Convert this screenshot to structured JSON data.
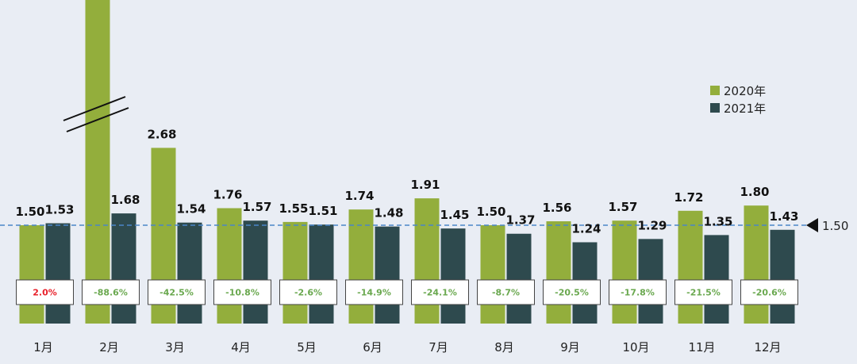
{
  "chart_data": {
    "type": "bar",
    "categories": [
      "1月",
      "2月",
      "3月",
      "4月",
      "5月",
      "6月",
      "7月",
      "8月",
      "9月",
      "10月",
      "11月",
      "12月"
    ],
    "series": [
      {
        "name": "2020年",
        "color": "#93ae3c",
        "values": [
          1.5,
          null,
          2.68,
          1.76,
          1.55,
          1.74,
          1.91,
          1.5,
          1.56,
          1.57,
          1.72,
          1.8
        ],
        "labels": [
          "1.50",
          "",
          "2.68",
          "1.76",
          "1.55",
          "1.74",
          "1.91",
          "1.50",
          "1.56",
          "1.57",
          "1.72",
          "1.80"
        ]
      },
      {
        "name": "2021年",
        "color": "#2e4a4e",
        "values": [
          1.53,
          1.68,
          1.54,
          1.57,
          1.51,
          1.48,
          1.45,
          1.37,
          1.24,
          1.29,
          1.35,
          1.43
        ],
        "labels": [
          "1.53",
          "1.68",
          "1.54",
          "1.57",
          "1.51",
          "1.48",
          "1.45",
          "1.37",
          "1.24",
          "1.29",
          "1.35",
          "1.43"
        ]
      }
    ],
    "change_labels": [
      "2.0%",
      "-88.6%",
      "-42.5%",
      "-10.8%",
      "-2.6%",
      "-14.9%",
      "-24.1%",
      "-8.7%",
      "-20.5%",
      "-17.8%",
      "-21.5%",
      "-20.6%"
    ],
    "change_colors": {
      "positive": "#e8202a",
      "negative": "#6aa84f"
    },
    "reference_line": {
      "value": 1.5,
      "label": "1.50",
      "color": "#4a86c8"
    },
    "broken_bar": {
      "category": "2月",
      "series": "2020年",
      "note": "axis break"
    },
    "legend_position": "top-right",
    "grid": false,
    "ylim": [
      0,
      2.9
    ]
  }
}
